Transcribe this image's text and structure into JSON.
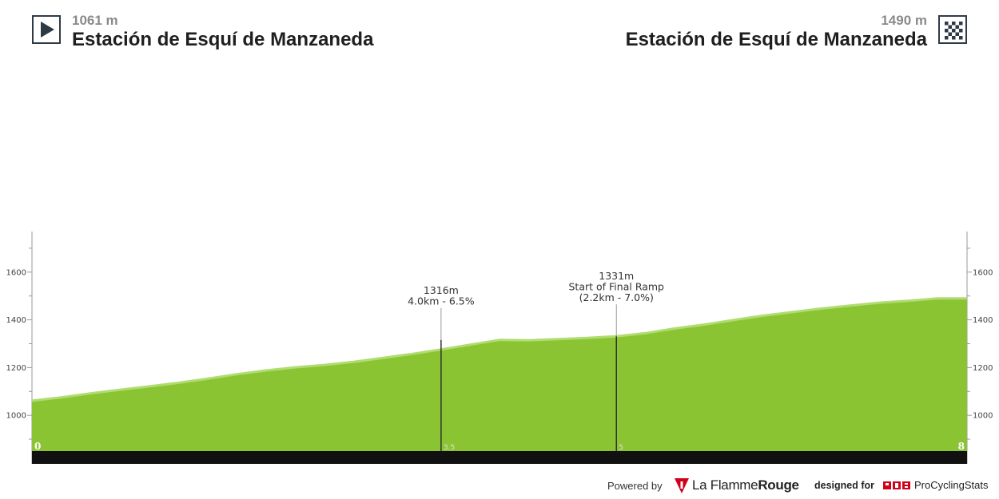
{
  "header": {
    "start": {
      "elevation": "1061 m",
      "name": "Estación de Esquí de Manzaneda"
    },
    "finish": {
      "elevation": "1490 m",
      "name": "Estación de Esquí de Manzaneda"
    }
  },
  "chart_data": {
    "type": "area",
    "title": "",
    "xlabel": "",
    "ylabel": "",
    "x_unit": "km",
    "y_unit": "m",
    "xlim": [
      0,
      8
    ],
    "ylim": [
      850,
      1770
    ],
    "y_ticks": [
      1000,
      1200,
      1400,
      1600
    ],
    "fill_color": "#8bc433",
    "line_color": "#b0dc70",
    "x": [
      0,
      0.25,
      0.5,
      0.75,
      1.0,
      1.25,
      1.5,
      1.75,
      2.0,
      2.25,
      2.5,
      2.75,
      3.0,
      3.25,
      3.5,
      3.75,
      4.0,
      4.25,
      4.5,
      4.75,
      5.0,
      5.25,
      5.5,
      5.75,
      6.0,
      6.25,
      6.5,
      6.75,
      7.0,
      7.25,
      7.5,
      7.75,
      8.0
    ],
    "y": [
      1061,
      1075,
      1092,
      1107,
      1121,
      1136,
      1153,
      1172,
      1188,
      1201,
      1211,
      1224,
      1240,
      1257,
      1276,
      1296,
      1316,
      1314,
      1319,
      1324,
      1331,
      1344,
      1364,
      1380,
      1399,
      1417,
      1432,
      1447,
      1460,
      1472,
      1480,
      1490,
      1490
    ],
    "km_markers": [
      {
        "km": 0,
        "label": "0"
      },
      {
        "km": 3.5,
        "label": "3.5"
      },
      {
        "km": 5,
        "label": "5"
      },
      {
        "km": 8,
        "label": "8"
      }
    ],
    "annotations": [
      {
        "km": 3.5,
        "elevation": 1316,
        "lines": [
          "1316m",
          "4.0km - 6.5%"
        ]
      },
      {
        "km": 4.6,
        "elevation": 1331,
        "lines": [
          "1331m",
          "Start of Final Ramp",
          "(2.2km - 7.0%)"
        ]
      }
    ]
  },
  "footer": {
    "powered_by": "Powered by",
    "lfr_brand_a": "La Flamme",
    "lfr_brand_b": "Rouge",
    "designed_for": "designed for",
    "pcs_name": "ProCyclingStats",
    "brand_red": "#d0021b"
  }
}
